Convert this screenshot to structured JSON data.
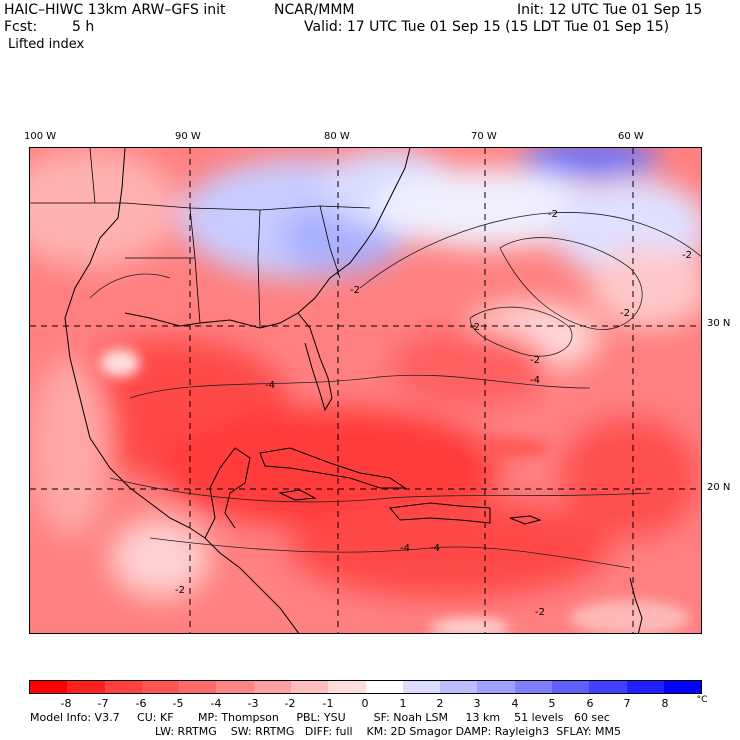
{
  "header": {
    "title": "HAIC–HIWC 13km ARW–GFS init",
    "org": "NCAR/MMM",
    "init": "Init: 12 UTC Tue 01 Sep 15",
    "fcst_label": "Fcst:",
    "fcst_value": "5 h",
    "valid": "Valid: 17 UTC Tue 01 Sep 15 (15 LDT Tue 01 Sep 15)",
    "field": "Lifted index"
  },
  "map": {
    "lon_labels": [
      "100 W",
      "90 W",
      "80 W",
      "70 W",
      "60 W"
    ],
    "lat_labels": [
      "30 N",
      "20 N"
    ],
    "contour_labels": [
      "-2",
      "-2",
      "-2",
      "-2",
      "-2",
      "-2",
      "-4",
      "-4",
      "-4",
      "-4",
      "-2",
      "-2"
    ]
  },
  "colorbar": {
    "ticks": [
      "-8",
      "-7",
      "-6",
      "-5",
      "-4",
      "-3",
      "-2",
      "-1",
      "0",
      "1",
      "2",
      "3",
      "4",
      "5",
      "6",
      "7",
      "8"
    ],
    "unit": "°C",
    "colors": [
      "#ff0000",
      "#ff2020",
      "#ff4040",
      "#ff5555",
      "#ff6a6a",
      "#ff8585",
      "#ffa0a0",
      "#ffbebe",
      "#ffdcdc",
      "#ffffff",
      "#dcdcff",
      "#bebeff",
      "#a0a0ff",
      "#8080ff",
      "#6060ff",
      "#4040ff",
      "#2020ff",
      "#0000ff"
    ]
  },
  "footer": {
    "line1": "Model Info: V3.7     CU: KF       MP: Thompson     PBL: YSU        SF: Noah LSM     13 km    51 levels   60 sec",
    "line2": "LW: RRTMG    SW: RRTMG   DIFF: full    KM: 2D Smagor DAMP: Rayleigh3  SFLAY: MM5"
  }
}
